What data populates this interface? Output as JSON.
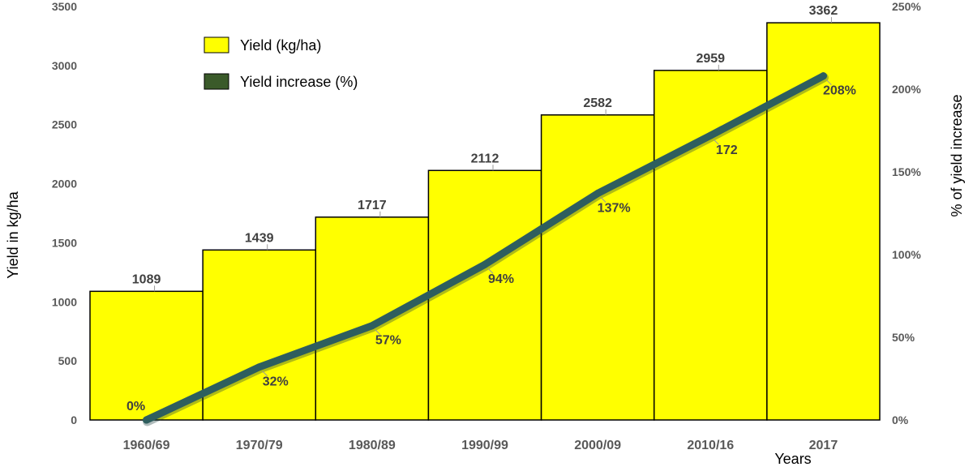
{
  "chart_data": {
    "type": "bar",
    "categories": [
      "1960/69",
      "1970/79",
      "1980/89",
      "1990/99",
      "2000/09",
      "2010/16",
      "2017"
    ],
    "bar_series": {
      "name": "Yield (kg/ha)",
      "values": [
        1089,
        1439,
        1717,
        2112,
        2582,
        2959,
        3362
      ],
      "labels": [
        "1089",
        "1439",
        "1717",
        "2112",
        "2582",
        "2959",
        "3362"
      ],
      "color": "#FFFF00",
      "axis": "left"
    },
    "line_series": {
      "name": "Yield increase (%)",
      "values": [
        0,
        32,
        57,
        94,
        137,
        172,
        208
      ],
      "labels": [
        "0%",
        "32%",
        "57%",
        "94%",
        "137%",
        "172",
        "208%"
      ],
      "color": "#2E5E5E",
      "axis": "right"
    },
    "ylabel": "Yield in kg/ha",
    "ylabel_right": "% of yield increase",
    "xlabel": "Years",
    "ylim": [
      0,
      3500
    ],
    "ylim_right": [
      0,
      250
    ],
    "yticks": [
      "0",
      "500",
      "1000",
      "1500",
      "2000",
      "2500",
      "3000",
      "3500"
    ],
    "yticks_right": [
      "0%",
      "50%",
      "100%",
      "150%",
      "200%",
      "250%"
    ],
    "legend_position": "top-left",
    "legend_swatch_line": "#3A5A2A",
    "grid": false
  }
}
